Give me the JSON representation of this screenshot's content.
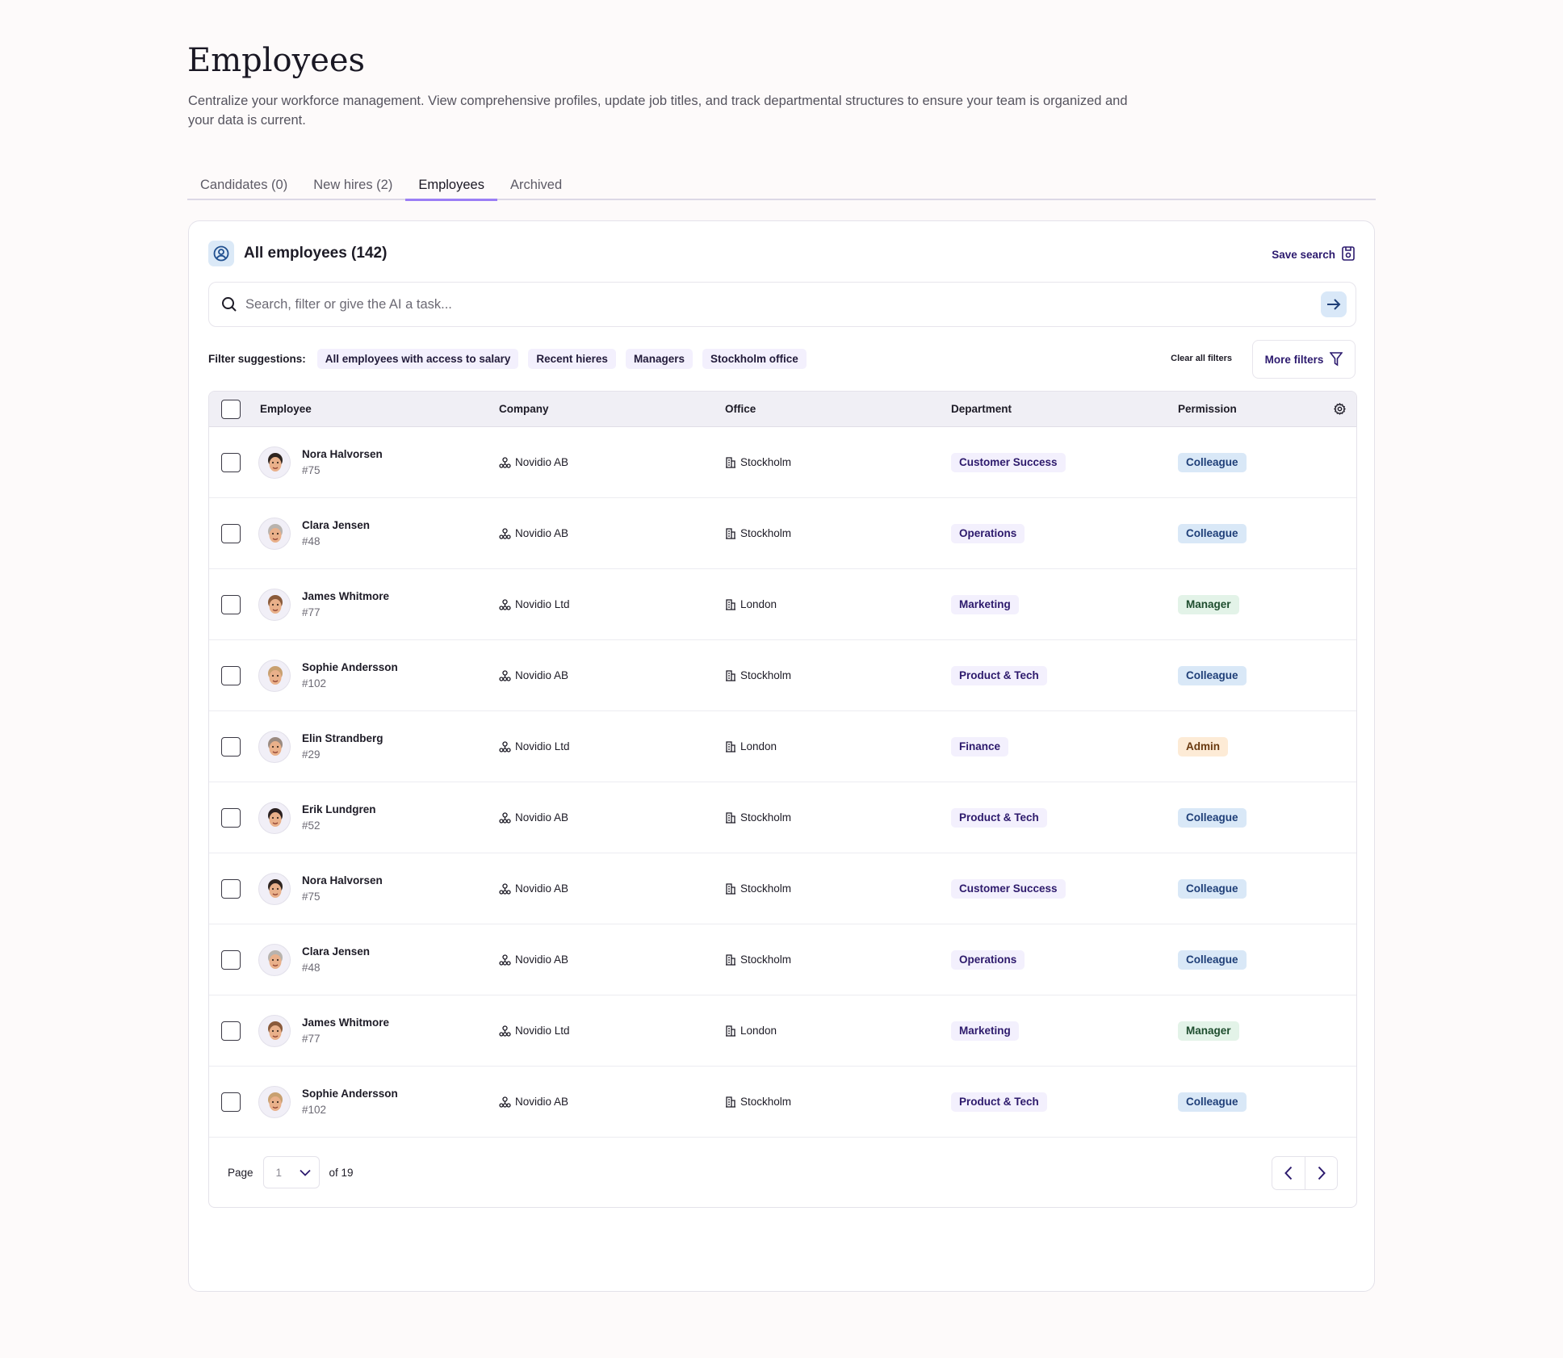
{
  "page": {
    "title": "Employees",
    "description": "Centralize your workforce management. View comprehensive profiles, update job titles, and track departmental structures to ensure your team is organized and your data is current."
  },
  "tabs": [
    {
      "label": "Candidates (0)"
    },
    {
      "label": "New hires (2)"
    },
    {
      "label": "Employees",
      "active": true
    },
    {
      "label": "Archived"
    }
  ],
  "card": {
    "title": "All employees (142)",
    "save_label": "Save search",
    "search_placeholder": "Search, filter or give the AI a task...",
    "filter_label": "Filter suggestions:",
    "suggestions": [
      "All employees with access to salary",
      "Recent hieres",
      "Managers",
      "Stockholm office"
    ],
    "clear_label": "Clear all filters",
    "more_filters_label": "More filters"
  },
  "table": {
    "columns": [
      "Employee",
      "Company",
      "Office",
      "Department",
      "Permission"
    ],
    "rows": [
      {
        "name": "Nora Halvorsen",
        "id": "#75",
        "company": "Novidio AB",
        "office": "Stockholm",
        "department": "Customer Success",
        "permission": "Colleague"
      },
      {
        "name": "Clara Jensen",
        "id": "#48",
        "company": "Novidio AB",
        "office": "Stockholm",
        "department": "Operations",
        "permission": "Colleague"
      },
      {
        "name": "James Whitmore",
        "id": "#77",
        "company": "Novidio Ltd",
        "office": "London",
        "department": "Marketing",
        "permission": "Manager"
      },
      {
        "name": "Sophie Andersson",
        "id": "#102",
        "company": "Novidio AB",
        "office": "Stockholm",
        "department": "Product & Tech",
        "permission": "Colleague"
      },
      {
        "name": "Elin Strandberg",
        "id": "#29",
        "company": "Novidio Ltd",
        "office": "London",
        "department": "Finance",
        "permission": "Admin"
      },
      {
        "name": "Erik Lundgren",
        "id": "#52",
        "company": "Novidio AB",
        "office": "Stockholm",
        "department": "Product & Tech",
        "permission": "Colleague"
      },
      {
        "name": "Nora Halvorsen",
        "id": "#75",
        "company": "Novidio AB",
        "office": "Stockholm",
        "department": "Customer Success",
        "permission": "Colleague"
      },
      {
        "name": "Clara Jensen",
        "id": "#48",
        "company": "Novidio AB",
        "office": "Stockholm",
        "department": "Operations",
        "permission": "Colleague"
      },
      {
        "name": "James Whitmore",
        "id": "#77",
        "company": "Novidio Ltd",
        "office": "London",
        "department": "Marketing",
        "permission": "Manager"
      },
      {
        "name": "Sophie Andersson",
        "id": "#102",
        "company": "Novidio AB",
        "office": "Stockholm",
        "department": "Product & Tech",
        "permission": "Colleague"
      }
    ]
  },
  "pagination": {
    "page_label": "Page",
    "current": "1",
    "of_label": "of 19"
  },
  "colors": {
    "accent": "#9b7ef5",
    "brand_text": "#2c1a6e"
  }
}
